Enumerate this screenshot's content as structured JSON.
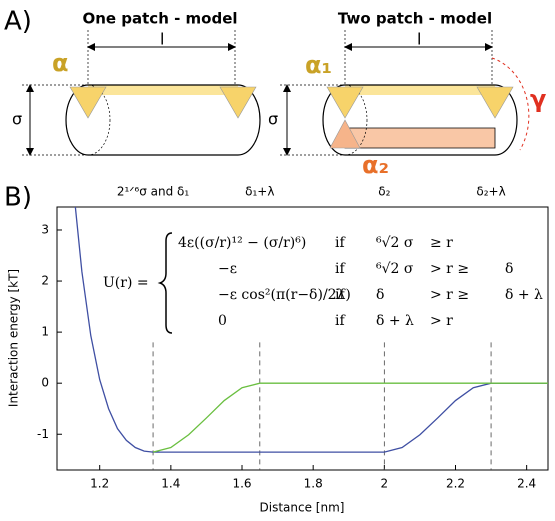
{
  "panel_a": {
    "label": "A)",
    "one_patch": {
      "title": "One patch - model",
      "length": "l",
      "diameter": "σ",
      "angle": "α"
    },
    "two_patch": {
      "title": "Two patch - model",
      "length": "l",
      "diameter": "σ",
      "angle1": "α₁",
      "angle2": "α₂",
      "gap": "γ"
    }
  },
  "chart_data": {
    "type": "line",
    "panel_label": "B)",
    "x_label": "Distance [nm]",
    "y_label": "Interaction energy [kT]",
    "xlim": [
      1.08,
      2.46
    ],
    "ylim": [
      -1.7,
      3.45
    ],
    "xticks": [
      1.2,
      1.4,
      1.6,
      1.8,
      2,
      2.2,
      2.4
    ],
    "yticks": [
      -1,
      0,
      1,
      2,
      3
    ],
    "markers": [
      {
        "label": "2¹ᐟ⁶σ and δ₁",
        "x": 1.35
      },
      {
        "label": "δ₁+λ",
        "x": 1.65
      },
      {
        "label": "δ₂",
        "x": 2.0
      },
      {
        "label": "δ₂+λ",
        "x": 2.3
      }
    ],
    "series": [
      {
        "color": "#3f4fa3",
        "x": [
          1.13,
          1.15,
          1.175,
          1.2,
          1.225,
          1.25,
          1.275,
          1.3,
          1.325,
          1.35,
          2.0,
          2.05,
          2.1,
          2.15,
          2.2,
          2.25,
          2.3,
          2.46
        ],
        "values": [
          3.56,
          2.18,
          0.93,
          0.07,
          -0.5,
          -0.89,
          -1.12,
          -1.26,
          -1.33,
          -1.35,
          -1.35,
          -1.26,
          -1.01,
          -0.68,
          -0.34,
          -0.09,
          0,
          0
        ]
      },
      {
        "color": "#6abf40",
        "x": [
          1.35,
          1.4,
          1.45,
          1.5,
          1.55,
          1.6,
          1.65,
          2.46
        ],
        "values": [
          -1.35,
          -1.26,
          -1.01,
          -0.68,
          -0.34,
          -0.09,
          0,
          0
        ]
      }
    ],
    "equation": {
      "lhs": "U(r) =",
      "rows": [
        [
          "4ε((σ/r)¹² − (σ/r)⁶)",
          "if",
          "⁶√2 σ",
          "≥ r",
          ""
        ],
        [
          "−ε",
          "if",
          "⁶√2 σ",
          "> r ≥",
          "δ"
        ],
        [
          "−ε cos²(π(r−δ)/2λ)",
          "if",
          "δ",
          "> r ≥",
          "δ + λ"
        ],
        [
          "0",
          "if",
          "δ + λ",
          "> r",
          ""
        ]
      ]
    }
  }
}
